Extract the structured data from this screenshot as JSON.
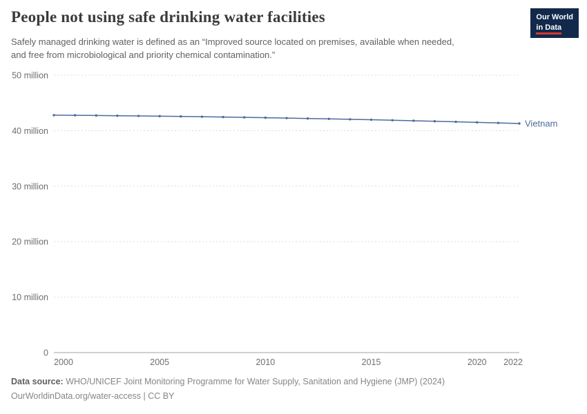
{
  "header": {
    "title": "People not using safe drinking water facilities",
    "subtitle": "Safely managed drinking water is defined as an “Improved source located on premises, available when needed, and free from microbiological and priority chemical contamination.”"
  },
  "logo": {
    "line1": "Our World",
    "line2": "in Data"
  },
  "chart_data": {
    "type": "line",
    "title": "People not using safe drinking water facilities",
    "unit": "million people",
    "x": [
      2000,
      2001,
      2002,
      2003,
      2004,
      2005,
      2006,
      2007,
      2008,
      2009,
      2010,
      2011,
      2012,
      2013,
      2014,
      2015,
      2016,
      2017,
      2018,
      2019,
      2020,
      2021,
      2022
    ],
    "series": [
      {
        "name": "Vietnam",
        "color": "#4c6a9c",
        "values": [
          42.8,
          42.77,
          42.74,
          42.7,
          42.66,
          42.62,
          42.57,
          42.52,
          42.46,
          42.4,
          42.34,
          42.27,
          42.2,
          42.13,
          42.05,
          41.97,
          41.88,
          41.79,
          41.7,
          41.6,
          41.5,
          41.4,
          41.3
        ]
      }
    ],
    "ylim": [
      0,
      50
    ],
    "yticks": [
      {
        "value": 0,
        "label": "0"
      },
      {
        "value": 10,
        "label": "10 million"
      },
      {
        "value": 20,
        "label": "20 million"
      },
      {
        "value": 30,
        "label": "30 million"
      },
      {
        "value": 40,
        "label": "40 million"
      },
      {
        "value": 50,
        "label": "50 million"
      }
    ],
    "xticks": [
      2000,
      2005,
      2010,
      2015,
      2020,
      2022
    ],
    "grid": "dashed-horizontal",
    "legend_position": "end-of-line"
  },
  "footer": {
    "source_label": "Data source:",
    "source_text": " WHO/UNICEF Joint Monitoring Programme for Water Supply, Sanitation and Hygiene (JMP) (2024)",
    "license": "OurWorldinData.org/water-access | CC BY"
  }
}
